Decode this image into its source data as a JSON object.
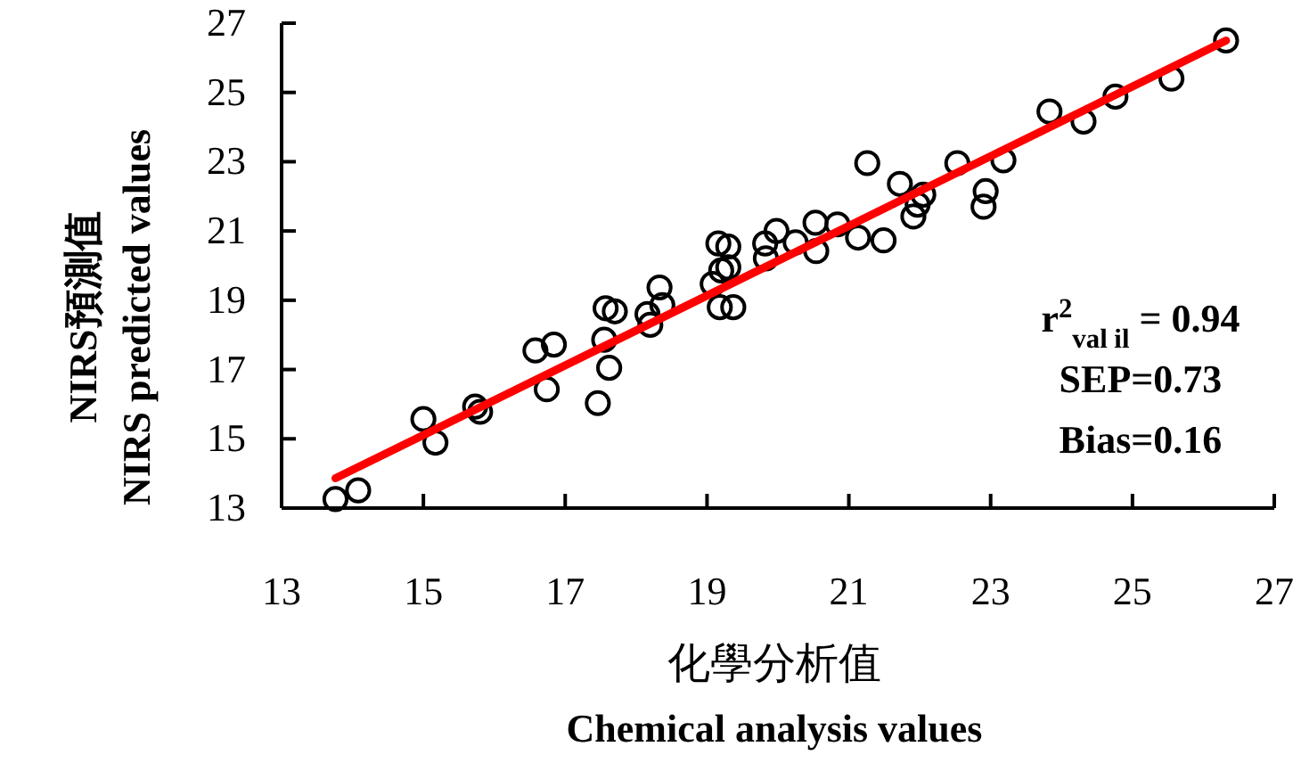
{
  "chart_data": {
    "type": "scatter",
    "xlabel": "化學分析值\nChemical analysis values",
    "ylabel": "NIRS預測值\nNIRS predicted values",
    "xlim": [
      13,
      27
    ],
    "xticks": [
      13,
      15,
      17,
      19,
      21,
      23,
      25,
      27
    ],
    "ylim": [
      13,
      27
    ],
    "yticks": [
      13,
      15,
      17,
      19,
      21,
      23,
      25,
      27
    ],
    "grid": false,
    "annotations": [
      "r$^{2}$$_{val il}$ = 0.94",
      "SEP=0.73",
      "Bias=0.16"
    ],
    "series": [
      {
        "type": "scatter",
        "marker": "circle",
        "color": "#000000",
        "x": [
          13.76,
          14.08,
          15.0,
          15.17,
          15.73,
          15.8,
          16.58,
          16.84,
          16.74,
          17.46,
          17.57,
          17.7,
          17.55,
          17.62,
          18.16,
          18.2,
          18.33,
          18.37,
          19.16,
          19.3,
          19.2,
          19.3,
          19.08,
          19.18,
          19.37,
          19.82,
          19.83,
          19.98,
          20.25,
          20.53,
          20.54,
          20.84,
          21.13,
          21.26,
          21.49,
          21.72,
          21.91,
          21.97,
          22.05,
          22.53,
          22.93,
          22.9,
          23.18,
          23.83,
          24.31,
          24.76,
          25.55,
          26.32
        ],
        "values": [
          13.26,
          13.51,
          15.57,
          14.89,
          15.93,
          15.78,
          17.55,
          17.72,
          16.43,
          16.03,
          18.77,
          18.68,
          17.86,
          17.05,
          18.6,
          18.29,
          19.37,
          18.86,
          20.64,
          20.55,
          19.86,
          19.95,
          19.47,
          18.8,
          18.8,
          20.64,
          20.21,
          21.0,
          20.67,
          21.24,
          20.42,
          21.19,
          20.81,
          22.96,
          20.73,
          22.36,
          21.42,
          21.76,
          22.05,
          22.96,
          22.15,
          21.7,
          23.04,
          24.45,
          24.16,
          24.88,
          25.4,
          26.5
        ]
      },
      {
        "type": "line",
        "color": "#ff0000",
        "line_style": "solid",
        "x": [
          13.76,
          26.32
        ],
        "values": [
          13.86,
          26.5
        ]
      }
    ]
  }
}
